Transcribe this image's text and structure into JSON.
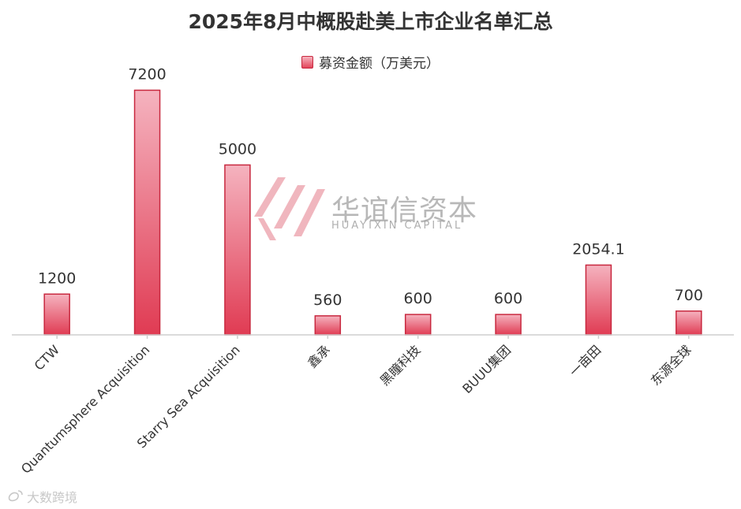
{
  "chart_data": {
    "type": "bar",
    "title": "2025年8月中概股赴美上市企业名单汇总",
    "legend": "募资金额（万美元）",
    "categories": [
      "CTW",
      "Quantumsphere Acquisition",
      "Starry Sea Acquisition",
      "鑫承",
      "黑瞳科技",
      "BUUU集团",
      "一亩田",
      "东源全球"
    ],
    "series": [
      {
        "name": "募资金额（万美元）",
        "values": [
          1200,
          7200,
          5000,
          560,
          600,
          600,
          2054.1,
          700
        ]
      }
    ],
    "data_labels": [
      "1200",
      "7200",
      "5000",
      "560",
      "600",
      "600",
      "2054.1",
      "700"
    ],
    "ylim": [
      0,
      8000
    ],
    "grid": false,
    "legend_position": "top-center",
    "colors": {
      "bar_top": "#f5b3bf",
      "bar_bottom": "#e03b53",
      "bar_border": "#c8283f"
    }
  },
  "watermark": {
    "cn": "华谊信资本",
    "en": "HUAYIXIN CAPITAL"
  },
  "footer": {
    "text": "大数跨境"
  }
}
